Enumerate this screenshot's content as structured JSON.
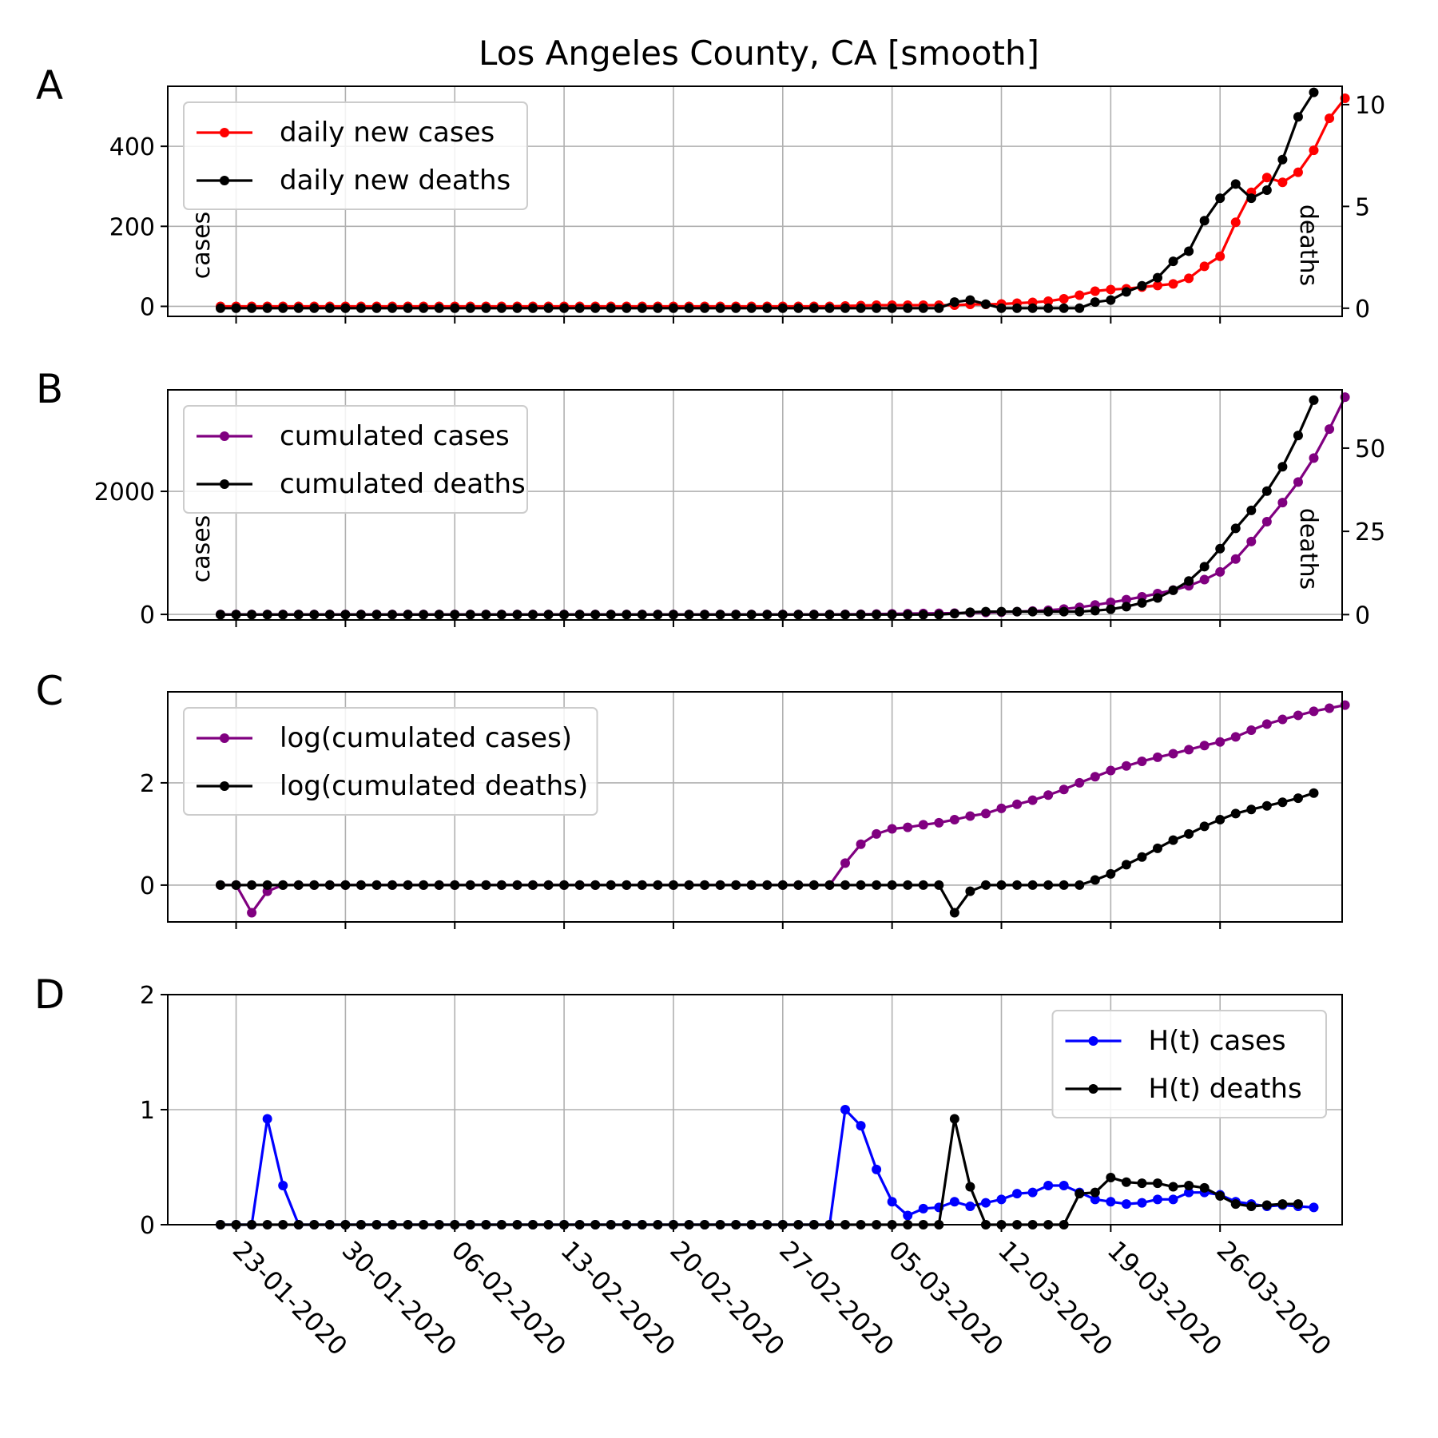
{
  "figure_title": "Los Angeles County, CA [smooth]",
  "x_tick_labels": [
    "23-01-2020",
    "30-01-2020",
    "06-02-2020",
    "13-02-2020",
    "20-02-2020",
    "27-02-2020",
    "05-03-2020",
    "12-03-2020",
    "19-03-2020",
    "26-03-2020"
  ],
  "chart_data": [
    {
      "panel": "A",
      "type": "line",
      "x_start": "2020-01-22",
      "x_end": "2020-03-31",
      "grid": true,
      "legend_position": "upper-left",
      "ylim": [
        -25,
        550
      ],
      "y_ticks": [
        0,
        200,
        400
      ],
      "ylabel": "cases",
      "ylim_right": [
        -0.4,
        10.9
      ],
      "y_ticks_right": [
        0,
        5,
        10
      ],
      "ylabel_right": "deaths",
      "series": [
        {
          "name": "daily new cases",
          "color": "#ff0000",
          "axis": "left",
          "values": [
            0,
            0,
            0,
            0,
            0,
            0,
            0,
            0,
            0,
            0,
            0,
            0,
            0,
            0,
            0,
            0,
            0,
            0,
            0,
            0,
            0,
            0,
            0,
            0,
            0,
            0,
            0,
            0,
            0,
            0,
            0,
            0,
            0,
            0,
            0,
            0,
            0,
            0,
            0,
            0,
            1,
            2,
            3,
            3,
            3,
            3,
            3,
            3,
            5,
            5,
            6,
            8,
            10,
            13,
            19,
            28,
            38,
            42,
            44,
            48,
            52,
            56,
            70,
            100,
            125,
            210,
            285,
            322,
            310,
            335,
            390,
            470,
            520
          ]
        },
        {
          "name": "daily new deaths",
          "color": "#000000",
          "axis": "right",
          "values": [
            0,
            0,
            0,
            0,
            0,
            0,
            0,
            0,
            0,
            0,
            0,
            0,
            0,
            0,
            0,
            0,
            0,
            0,
            0,
            0,
            0,
            0,
            0,
            0,
            0,
            0,
            0,
            0,
            0,
            0,
            0,
            0,
            0,
            0,
            0,
            0,
            0,
            0,
            0,
            0,
            0,
            0,
            0,
            0,
            0,
            0,
            0,
            0.3,
            0.4,
            0.2,
            0,
            0,
            0,
            0,
            0,
            0,
            0.3,
            0.4,
            0.8,
            1.1,
            1.5,
            2.3,
            2.8,
            4.3,
            5.4,
            6.1,
            5.4,
            5.8,
            7.3,
            9.4,
            10.6
          ]
        }
      ]
    },
    {
      "panel": "B",
      "type": "line",
      "x_start": "2020-01-22",
      "x_end": "2020-03-31",
      "grid": true,
      "legend_position": "upper-left",
      "ylim": [
        -90,
        3650
      ],
      "y_ticks": [
        0,
        2000
      ],
      "ylabel": "cases",
      "ylim_right": [
        -1.6,
        67.5
      ],
      "y_ticks_right": [
        0,
        25,
        50
      ],
      "ylabel_right": "deaths",
      "series": [
        {
          "name": "cumulated cases",
          "color": "#800080",
          "axis": "left",
          "values": [
            0,
            0,
            0,
            0,
            0,
            0,
            0,
            0,
            0,
            0,
            0,
            0,
            0,
            0,
            0,
            0,
            0,
            0,
            0,
            0,
            0,
            0,
            0,
            0,
            0,
            0,
            0,
            0,
            0,
            0,
            0,
            0,
            0,
            0,
            0,
            0,
            0,
            0,
            0,
            0,
            1,
            3,
            6,
            9,
            12,
            15,
            18,
            21,
            26,
            31,
            37,
            45,
            55,
            68,
            87,
            115,
            153,
            195,
            239,
            287,
            339,
            395,
            465,
            565,
            690,
            900,
            1185,
            1507,
            1817,
            2152,
            2542,
            3012,
            3532
          ]
        },
        {
          "name": "cumulated deaths",
          "color": "#000000",
          "axis": "right",
          "values": [
            0,
            0,
            0,
            0,
            0,
            0,
            0,
            0,
            0,
            0,
            0,
            0,
            0,
            0,
            0,
            0,
            0,
            0,
            0,
            0,
            0,
            0,
            0,
            0,
            0,
            0,
            0,
            0,
            0,
            0,
            0,
            0,
            0,
            0,
            0,
            0,
            0,
            0,
            0,
            0,
            0,
            0,
            0,
            0,
            0,
            0,
            0,
            0.3,
            0.7,
            0.9,
            0.9,
            0.9,
            0.9,
            0.9,
            0.9,
            0.9,
            1.2,
            1.6,
            2.4,
            3.5,
            5,
            7.3,
            10.1,
            14.4,
            19.8,
            25.9,
            31.3,
            37.1,
            44.4,
            53.8,
            64.4
          ]
        }
      ]
    },
    {
      "panel": "C",
      "type": "line",
      "x_start": "2020-01-22",
      "x_end": "2020-03-31",
      "grid": true,
      "legend_position": "upper-left",
      "ylim": [
        -0.72,
        3.78
      ],
      "y_ticks": [
        0,
        2
      ],
      "series": [
        {
          "name": "log(cumulated cases)",
          "color": "#800080",
          "axis": "left",
          "values": [
            0,
            0,
            -0.54,
            -0.12,
            0,
            0,
            0,
            0,
            0,
            0,
            0,
            0,
            0,
            0,
            0,
            0,
            0,
            0,
            0,
            0,
            0,
            0,
            0,
            0,
            0,
            0,
            0,
            0,
            0,
            0,
            0,
            0,
            0,
            0,
            0,
            0,
            0,
            0,
            0,
            0,
            0.43,
            0.8,
            1.0,
            1.1,
            1.13,
            1.18,
            1.22,
            1.28,
            1.35,
            1.4,
            1.5,
            1.58,
            1.66,
            1.76,
            1.87,
            2.0,
            2.12,
            2.24,
            2.33,
            2.42,
            2.5,
            2.57,
            2.65,
            2.73,
            2.8,
            2.9,
            3.03,
            3.15,
            3.24,
            3.32,
            3.4,
            3.46,
            3.52
          ]
        },
        {
          "name": "log(cumulated deaths)",
          "color": "#000000",
          "axis": "left",
          "values": [
            0,
            0,
            0,
            0,
            0,
            0,
            0,
            0,
            0,
            0,
            0,
            0,
            0,
            0,
            0,
            0,
            0,
            0,
            0,
            0,
            0,
            0,
            0,
            0,
            0,
            0,
            0,
            0,
            0,
            0,
            0,
            0,
            0,
            0,
            0,
            0,
            0,
            0,
            0,
            0,
            0,
            0,
            0,
            0,
            0,
            0,
            0,
            -0.54,
            -0.12,
            0,
            0,
            0,
            0,
            0,
            0,
            0,
            0.1,
            0.22,
            0.4,
            0.55,
            0.72,
            0.88,
            1.0,
            1.15,
            1.28,
            1.4,
            1.48,
            1.55,
            1.62,
            1.7,
            1.8
          ]
        }
      ]
    },
    {
      "panel": "D",
      "type": "line",
      "x_start": "2020-01-22",
      "x_end": "2020-03-31",
      "grid": true,
      "legend_position": "upper-right",
      "ylim": [
        0,
        2
      ],
      "y_ticks": [
        0,
        1,
        2
      ],
      "series": [
        {
          "name": "H(t) cases",
          "color": "#0000ff",
          "axis": "left",
          "values": [
            0,
            0,
            0,
            0.92,
            0.34,
            0,
            0,
            0,
            0,
            0,
            0,
            0,
            0,
            0,
            0,
            0,
            0,
            0,
            0,
            0,
            0,
            0,
            0,
            0,
            0,
            0,
            0,
            0,
            0,
            0,
            0,
            0,
            0,
            0,
            0,
            0,
            0,
            0,
            0,
            0,
            1.0,
            0.86,
            0.48,
            0.2,
            0.08,
            0.14,
            0.15,
            0.2,
            0.16,
            0.19,
            0.22,
            0.27,
            0.28,
            0.34,
            0.34,
            0.28,
            0.22,
            0.2,
            0.18,
            0.19,
            0.22,
            0.22,
            0.28,
            0.28,
            0.26,
            0.2,
            0.18,
            0.16,
            0.17,
            0.16,
            0.15
          ]
        },
        {
          "name": "H(t) deaths",
          "color": "#000000",
          "axis": "left",
          "values": [
            0,
            0,
            0,
            0,
            0,
            0,
            0,
            0,
            0,
            0,
            0,
            0,
            0,
            0,
            0,
            0,
            0,
            0,
            0,
            0,
            0,
            0,
            0,
            0,
            0,
            0,
            0,
            0,
            0,
            0,
            0,
            0,
            0,
            0,
            0,
            0,
            0,
            0,
            0,
            0,
            0,
            0,
            0,
            0,
            0,
            0,
            0,
            0.92,
            0.33,
            0,
            0,
            0,
            0,
            0,
            0,
            0.27,
            0.28,
            0.41,
            0.37,
            0.36,
            0.36,
            0.33,
            0.34,
            0.32,
            0.25,
            0.18,
            0.16,
            0.17,
            0.18,
            0.18
          ]
        }
      ]
    }
  ],
  "panel_letters": [
    "A",
    "B",
    "C",
    "D"
  ]
}
